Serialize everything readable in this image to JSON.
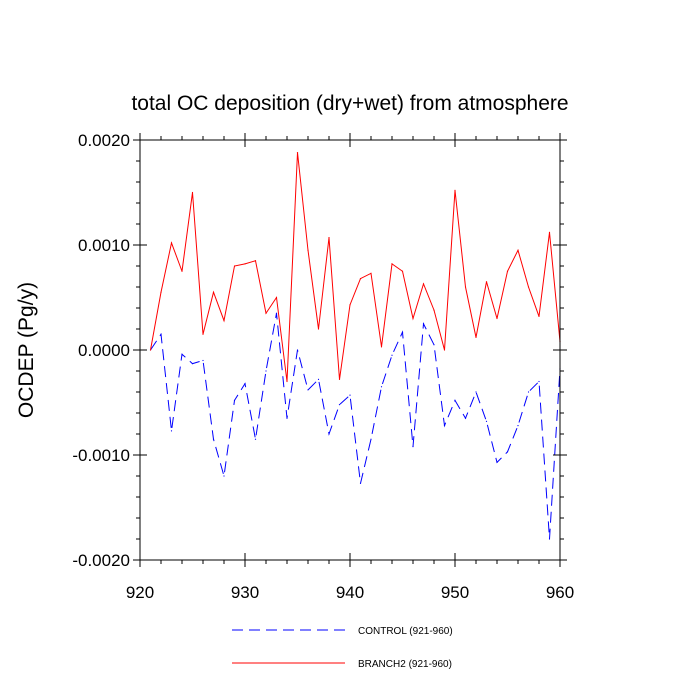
{
  "chart_data": {
    "type": "line",
    "title": "total OC deposition (dry+wet) from atmosphere",
    "xlabel": "",
    "ylabel": "OCDEP  (Pg/y)",
    "xlim": [
      920,
      960
    ],
    "ylim": [
      -0.002,
      0.002
    ],
    "x_ticks": [
      920,
      930,
      940,
      950,
      960
    ],
    "x_tick_labels": [
      "920",
      "930",
      "940",
      "950",
      "960"
    ],
    "y_ticks": [
      -0.002,
      -0.001,
      0.0,
      0.001,
      0.002
    ],
    "y_tick_labels": [
      "-0.0020",
      "-0.0010",
      "0.0000",
      "0.0010",
      "0.0020"
    ],
    "grid": false,
    "legend_position": "bottom-center",
    "x": [
      921,
      922,
      923,
      924,
      925,
      926,
      927,
      928,
      929,
      930,
      931,
      932,
      933,
      934,
      935,
      936,
      937,
      938,
      939,
      940,
      941,
      942,
      943,
      944,
      945,
      946,
      947,
      948,
      949,
      950,
      951,
      952,
      953,
      954,
      955,
      956,
      957,
      958,
      959,
      960
    ],
    "series": [
      {
        "name": "CONTROL (921-960)",
        "color": "#0000ff",
        "dash": "dashed",
        "values": [
          0.0,
          0.00015,
          -0.00077,
          -4e-05,
          -0.00013,
          -0.0001,
          -0.00085,
          -0.0012,
          -0.00048,
          -0.00032,
          -0.00085,
          -0.0002,
          0.00035,
          -0.00065,
          0.0,
          -0.00038,
          -0.00028,
          -0.0008,
          -0.00052,
          -0.00043,
          -0.00127,
          -0.00085,
          -0.00035,
          -5e-05,
          0.00017,
          -0.00092,
          0.00025,
          5e-05,
          -0.00072,
          -0.00048,
          -0.00065,
          -0.0004,
          -0.00068,
          -0.00107,
          -0.00097,
          -0.00072,
          -0.0004,
          -0.0003,
          -0.0018,
          -0.00018
        ]
      },
      {
        "name": "BRANCH2 (921-960)",
        "color": "#ff0000",
        "dash": "solid",
        "values": [
          0.0,
          0.00055,
          0.00102,
          0.00075,
          0.0015,
          0.00015,
          0.00055,
          0.00028,
          0.0008,
          0.00082,
          0.00085,
          0.00035,
          0.0005,
          -0.0003,
          0.00188,
          0.00095,
          0.0002,
          0.00107,
          -0.00028,
          0.00043,
          0.00068,
          0.00073,
          3e-05,
          0.00082,
          0.00075,
          0.0003,
          0.00063,
          0.00038,
          0.0,
          0.00152,
          0.0006,
          0.00012,
          0.00065,
          0.0003,
          0.00075,
          0.00095,
          0.0006,
          0.00032,
          0.00112,
          8e-05
        ]
      }
    ]
  }
}
